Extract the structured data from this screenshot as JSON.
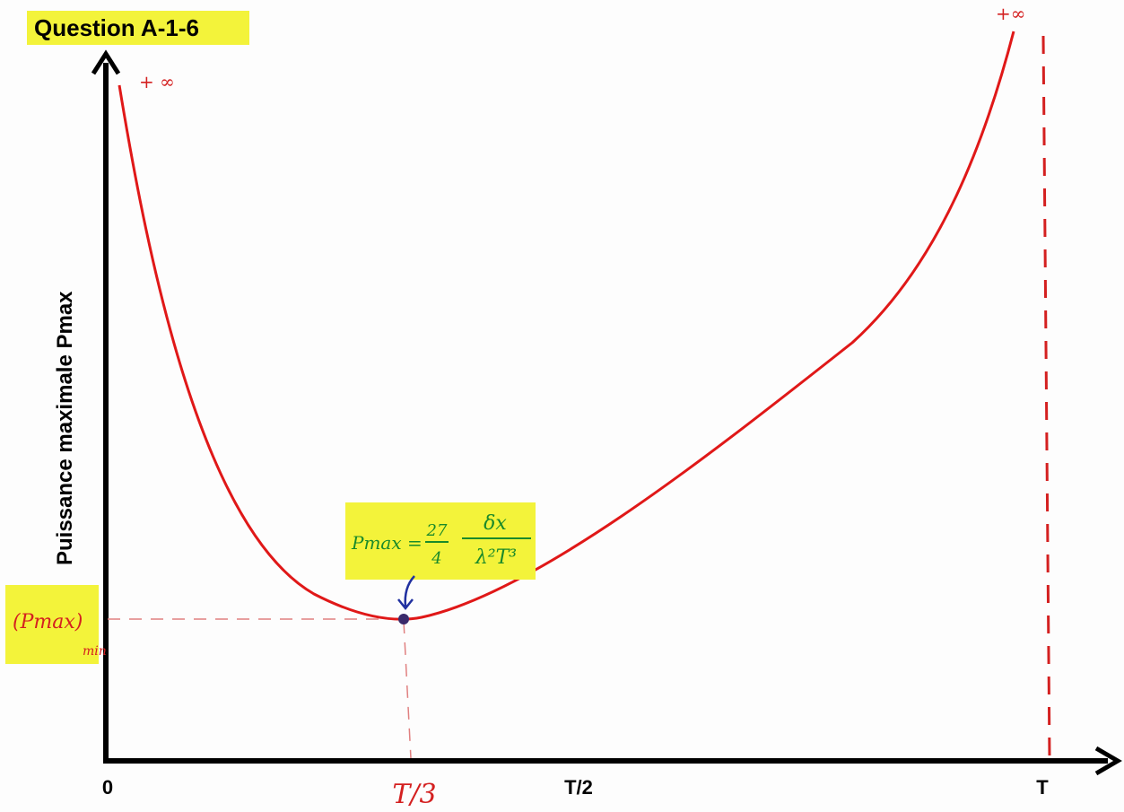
{
  "title": "Question A-1-6",
  "y_axis_label": "Puissance maximale  Pmax",
  "x_axis": {
    "labels": [
      "0",
      "T/2",
      "T"
    ]
  },
  "annotations": {
    "t_third": "T/3",
    "plus_infinity_left": "+ ∞",
    "plus_infinity_right": "+∞",
    "pmax_min": {
      "main": "Pmax",
      "sub": "min"
    },
    "formula": {
      "lhs": "Pmax =",
      "fraction1_num": "27",
      "fraction1_den": "4",
      "fraction2_num": "δx",
      "fraction2_den": "λ²T³"
    }
  }
}
